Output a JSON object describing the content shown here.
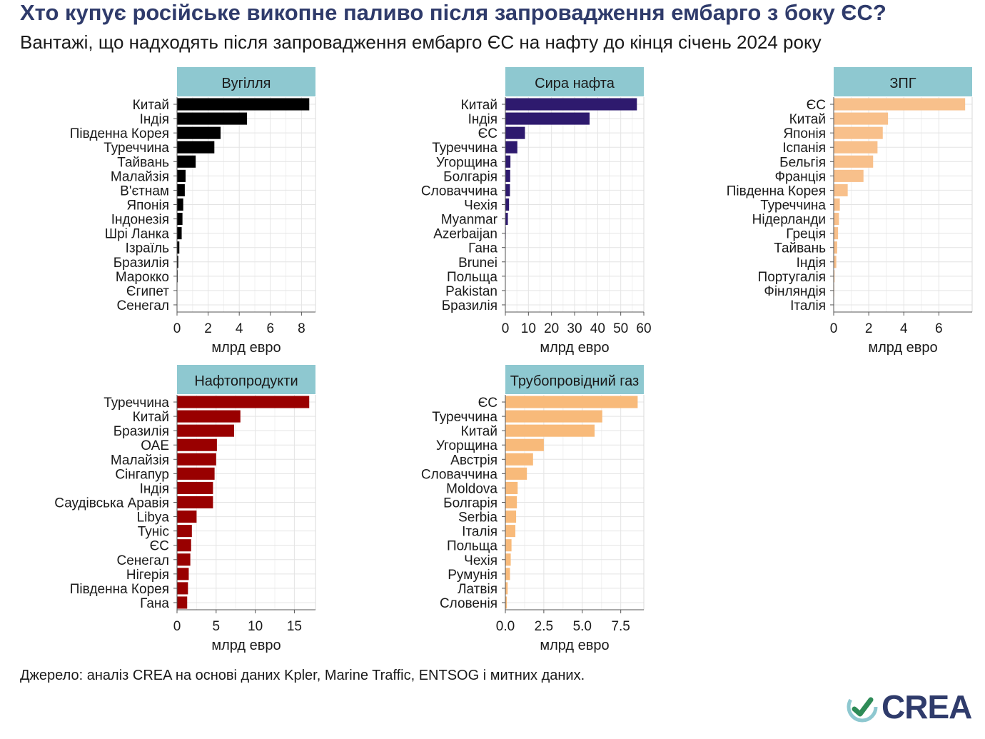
{
  "title": "Хто купує російське викопне паливо після запровадження ембарго з боку ЄС?",
  "subtitle": "Вантажі, що надходять після запровадження ембарго ЄС на нафту до кінця січень 2024 року",
  "source": "Джерело: аналіз CREA на основі даних Kpler, Marine Traffic, ENTSOG і митних даних.",
  "logo_text": "CREA",
  "colors": {
    "strip": "#8ec8d0",
    "grid": "#e4e4e4",
    "axis": "#c8c8c8"
  },
  "chart_data": [
    {
      "type": "bar",
      "orientation": "horizontal",
      "title": "Вугілля",
      "xlabel": "млрд евро",
      "color": "#000000",
      "xlim": [
        0,
        8.9
      ],
      "xticks": [
        0,
        2,
        4,
        6,
        8
      ],
      "tick_labels": [
        "0",
        "2",
        "4",
        "6",
        "8"
      ],
      "categories": [
        "Китай",
        "Індія",
        "Південна Корея",
        "Туреччина",
        "Тайвань",
        "Малайзія",
        "В'єтнам",
        "Японія",
        "Індонезія",
        "Шрі Ланка",
        "Ізраїль",
        "Бразилія",
        "Марокко",
        "Єгипет",
        "Сенегал"
      ],
      "values": [
        8.5,
        4.5,
        2.8,
        2.4,
        1.2,
        0.55,
        0.5,
        0.4,
        0.35,
        0.3,
        0.15,
        0.08,
        0.04,
        0.02,
        0.01
      ]
    },
    {
      "type": "bar",
      "orientation": "horizontal",
      "title": "Сира нафта",
      "xlabel": "млрд евро",
      "color": "#2e1a6e",
      "xlim": [
        0,
        60
      ],
      "xticks": [
        0,
        10,
        20,
        30,
        40,
        50,
        60
      ],
      "tick_labels": [
        "0",
        "10",
        "20",
        "30",
        "40",
        "50",
        "60"
      ],
      "categories": [
        "Китай",
        "Індія",
        "ЄС",
        "Туреччина",
        "Угорщина",
        "Болгарія",
        "Словаччина",
        "Чехія",
        "Myanmar",
        "Azerbaijan",
        "Гана",
        "Brunei",
        "Польща",
        "Pakistan",
        "Бразилія"
      ],
      "values": [
        57,
        36.5,
        8.5,
        5.2,
        2.2,
        2.1,
        2.0,
        1.6,
        1.1,
        0.2,
        0.15,
        0.1,
        0.08,
        0.06,
        0.04
      ]
    },
    {
      "type": "bar",
      "orientation": "horizontal",
      "title": "ЗПГ",
      "xlabel": "млрд евро",
      "color": "#f8c08b",
      "xlim": [
        0,
        7.9
      ],
      "xticks": [
        0,
        2,
        4,
        6
      ],
      "tick_labels": [
        "0",
        "2",
        "4",
        "6"
      ],
      "categories": [
        "ЄС",
        "Китай",
        "Японія",
        "Іспанія",
        "Бельгія",
        "Франція",
        "Південна Корея",
        "Туреччина",
        "Нідерланди",
        "Греція",
        "Тайвань",
        "Індія",
        "Португалія",
        "Фінляндія",
        "Італія"
      ],
      "values": [
        7.5,
        3.1,
        2.8,
        2.5,
        2.25,
        1.7,
        0.8,
        0.35,
        0.3,
        0.25,
        0.2,
        0.15,
        0.05,
        0.03,
        0.01
      ]
    },
    {
      "type": "bar",
      "orientation": "horizontal",
      "title": "Нафтопродукти",
      "xlabel": "млрд евро",
      "color": "#990000",
      "xlim": [
        0,
        17.7
      ],
      "xticks": [
        0,
        5,
        10,
        15
      ],
      "tick_labels": [
        "0",
        "5",
        "10",
        "15"
      ],
      "categories": [
        "Туреччина",
        "Китай",
        "Бразилія",
        "ОАЕ",
        "Малайзія",
        "Сінгапур",
        "Індія",
        "Саудівська Аравія",
        "Libya",
        "Туніс",
        "ЄС",
        "Сенегал",
        "Нігерія",
        "Південна Корея",
        "Гана"
      ],
      "values": [
        16.9,
        8.1,
        7.3,
        5.1,
        5.0,
        4.8,
        4.6,
        4.6,
        2.5,
        1.9,
        1.8,
        1.7,
        1.5,
        1.4,
        1.3
      ]
    },
    {
      "type": "bar",
      "orientation": "horizontal",
      "title": "Трубопровідний газ",
      "xlabel": "млрд евро",
      "color": "#f8ba7a",
      "xlim": [
        0,
        9.0
      ],
      "xticks": [
        0,
        2.5,
        5,
        7.5
      ],
      "tick_labels": [
        "0.0",
        "2.5",
        "5.0",
        "7.5"
      ],
      "categories": [
        "ЄС",
        "Туреччина",
        "Китай",
        "Угорщина",
        "Австрія",
        "Словаччина",
        "Moldova",
        "Болгарія",
        "Serbia",
        "Італія",
        "Польща",
        "Чехія",
        "Румунія",
        "Латвія",
        "Словенія"
      ],
      "values": [
        8.6,
        6.3,
        5.8,
        2.5,
        1.8,
        1.4,
        0.8,
        0.75,
        0.7,
        0.65,
        0.4,
        0.35,
        0.3,
        0.15,
        0.1
      ]
    }
  ]
}
